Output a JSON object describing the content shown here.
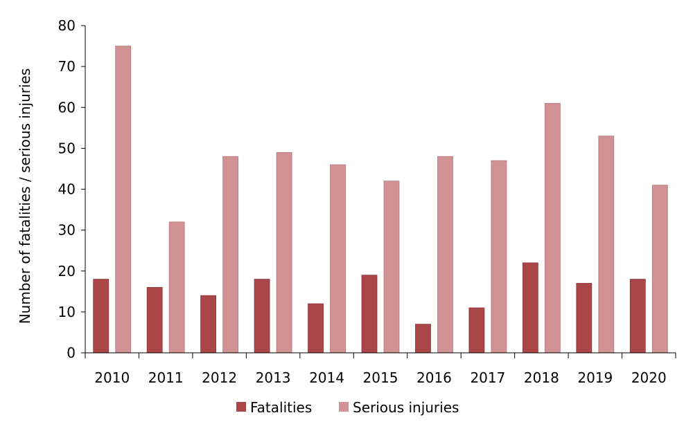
{
  "chart_data": {
    "type": "bar",
    "title": "",
    "xlabel": "",
    "ylabel": "Number of fatalities / serious injuries",
    "ylim": [
      0,
      80
    ],
    "yticks": [
      0,
      10,
      20,
      30,
      40,
      50,
      60,
      70,
      80
    ],
    "categories": [
      "2010",
      "2011",
      "2012",
      "2013",
      "2014",
      "2015",
      "2016",
      "2017",
      "2018",
      "2019",
      "2020"
    ],
    "series": [
      {
        "name": "Fatalities",
        "color": "#ab4648",
        "values": [
          18,
          16,
          14,
          18,
          12,
          19,
          7,
          11,
          22,
          17,
          18
        ]
      },
      {
        "name": "Serious injuries",
        "color": "#d09293",
        "values": [
          75,
          32,
          48,
          49,
          46,
          42,
          48,
          47,
          61,
          53,
          41
        ]
      }
    ],
    "grid": false,
    "legend": "bottom"
  }
}
